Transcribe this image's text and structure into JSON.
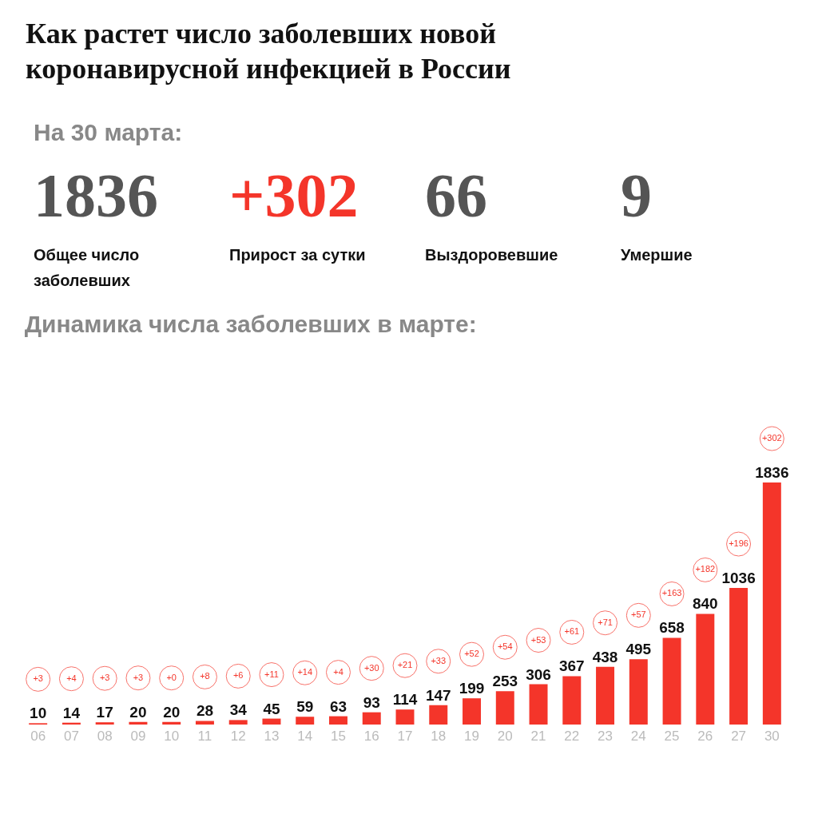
{
  "chart_data": [
    {
      "type": "other",
      "title": "Как растет число заболевших новой коронавирусной инфекцией в России",
      "subtitle": "На 30 марта:",
      "annotations": [
        "1836",
        "Общее число заболевших",
        "+302",
        "Прирост за сутки",
        "66",
        "Выздоровевшие",
        "9",
        "Умершие"
      ]
    },
    {
      "type": "bar",
      "title": "Динамика числа заболевших в марте:",
      "categories": [
        "06",
        "07",
        "08",
        "09",
        "10",
        "11",
        "12",
        "13",
        "14",
        "15",
        "16",
        "17",
        "18",
        "19",
        "20",
        "21",
        "22",
        "23",
        "24",
        "25",
        "26",
        "27",
        "30"
      ],
      "values": [
        10,
        14,
        17,
        20,
        20,
        28,
        34,
        45,
        59,
        63,
        93,
        114,
        147,
        199,
        253,
        306,
        367,
        438,
        495,
        658,
        840,
        1036,
        1836
      ],
      "color": "#f4352a",
      "data_labels": true,
      "annotations": [
        "+3",
        "+4",
        "+3",
        "+3",
        "+0",
        "+8",
        "+6",
        "+11",
        "+14",
        "+4",
        "+30",
        "+21",
        "+33",
        "+52",
        "+54",
        "+53",
        "+61",
        "+71",
        "+57",
        "+163",
        "+182",
        "+196",
        "+302"
      ]
    }
  ]
}
